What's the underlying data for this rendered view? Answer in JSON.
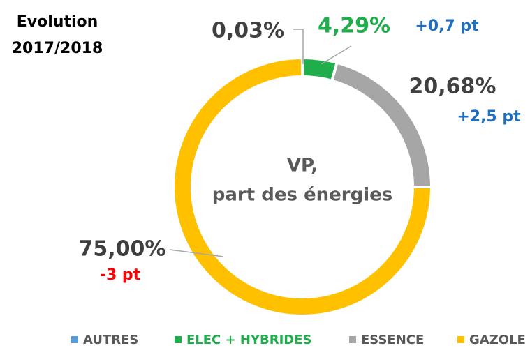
{
  "chart_data": {
    "type": "donut",
    "title": [
      "Evolution",
      "2017/2018"
    ],
    "center_text": [
      "VP,",
      "part des énergies"
    ],
    "series": [
      {
        "name": "AUTRES",
        "color": "#5b9bd5",
        "value": 0.03,
        "value_label": "0,03%"
      },
      {
        "name": "ELEC + HYBRIDES",
        "color": "#1fae4b",
        "value": 4.29,
        "value_label": "4,29%",
        "annotation": "+0,7 pt"
      },
      {
        "name": "ESSENCE",
        "color": "#a6a6a6",
        "value": 20.68,
        "value_label": "20,68%",
        "annotation": "+2,5 pt"
      },
      {
        "name": "GAZOLE",
        "color": "#ffc000",
        "value": 75.0,
        "value_label": "75,00%",
        "annotation": "-3 pt"
      }
    ],
    "legend": "bottom"
  }
}
